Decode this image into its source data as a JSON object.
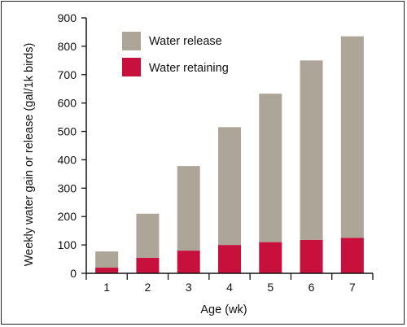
{
  "chart_data": {
    "type": "bar",
    "stacked": true,
    "categories": [
      "1",
      "2",
      "3",
      "4",
      "5",
      "6",
      "7"
    ],
    "series": [
      {
        "name": "Water retaining",
        "color": "#c8103c",
        "values": [
          20,
          55,
          80,
          100,
          110,
          118,
          125
        ]
      },
      {
        "name": "Water release",
        "color": "#ada597",
        "values": [
          57,
          155,
          298,
          415,
          523,
          632,
          710
        ]
      }
    ],
    "totals": [
      77,
      210,
      378,
      515,
      633,
      750,
      835
    ],
    "xlabel": "Age (wk)",
    "ylabel": "Weekly water gain or release (gal/1k birds)",
    "ylim": [
      0,
      900
    ],
    "yticks": [
      "0",
      "100",
      "200",
      "300",
      "400",
      "500",
      "600",
      "700",
      "800",
      "900"
    ],
    "legend": {
      "placement": "top-left",
      "entries": [
        {
          "label": "Water release",
          "color": "#ada597"
        },
        {
          "label": "Water retaining",
          "color": "#c8103c"
        }
      ]
    },
    "grid": false
  }
}
